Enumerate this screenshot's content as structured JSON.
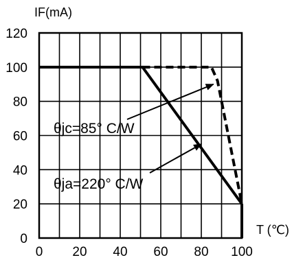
{
  "chart_data": {
    "type": "line",
    "ylabel": "IF(mA)",
    "xlabel": "T (℃)",
    "xlim": [
      0,
      100
    ],
    "ylim": [
      0,
      120
    ],
    "x_ticks": [
      0,
      20,
      40,
      60,
      80,
      100
    ],
    "y_ticks": [
      0,
      20,
      40,
      60,
      80,
      100,
      120
    ],
    "grid": true,
    "series": [
      {
        "style": "solid",
        "x": [
          0,
          51,
          100
        ],
        "y": [
          100,
          100,
          20
        ]
      },
      {
        "style": "dashed",
        "x": [
          51,
          85,
          88,
          100
        ],
        "y": [
          100,
          100,
          92,
          20
        ]
      }
    ],
    "annotations": [
      {
        "text": "θjc=85° C/W",
        "points_to": {
          "x": 86,
          "y": 90
        }
      },
      {
        "text": "θja=220° C/W",
        "points_to": {
          "x": 80,
          "y": 55
        }
      }
    ]
  }
}
